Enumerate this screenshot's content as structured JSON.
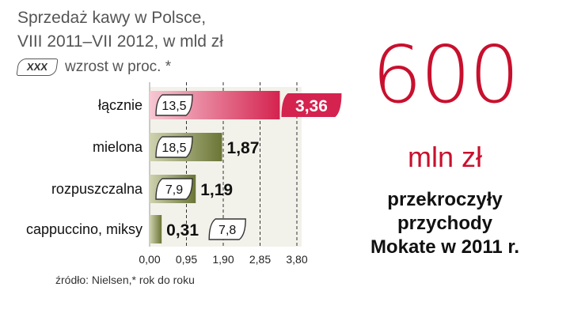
{
  "title": {
    "line1": "Sprzedaż kawy w Polsce,",
    "line2": "VIII 2011–VII 2012, w mld zł"
  },
  "legend": {
    "box_label": "XXX",
    "text": "wzrost w proc. *"
  },
  "chart_data": {
    "type": "bar",
    "orientation": "horizontal",
    "categories": [
      "łącznie",
      "mielona",
      "rozpuszczalna",
      "cappuccino, miksy"
    ],
    "values": [
      3.36,
      1.87,
      1.19,
      0.31
    ],
    "value_labels": [
      "3,36",
      "1,87",
      "1,19",
      "0,31"
    ],
    "growth_labels": [
      "13,5",
      "18,5",
      "7,9",
      "7,8"
    ],
    "xlim": [
      0,
      3.8
    ],
    "xticks": [
      0,
      0.95,
      1.9,
      2.85,
      3.8
    ],
    "xtick_labels": [
      "0,00",
      "0,95",
      "1,90",
      "2,85",
      "3,80"
    ],
    "grid": "vertical-dashed",
    "colors": {
      "highlight": "#d4234f",
      "bar": "#6b7535",
      "background": "#f3f2ea"
    }
  },
  "source": "źródło: Nielsen,* rok do roku",
  "highlight": {
    "number": "600",
    "unit": "mln zł",
    "caption": [
      "przekroczyły",
      "przychody",
      "Mokate w 2011 r."
    ]
  }
}
